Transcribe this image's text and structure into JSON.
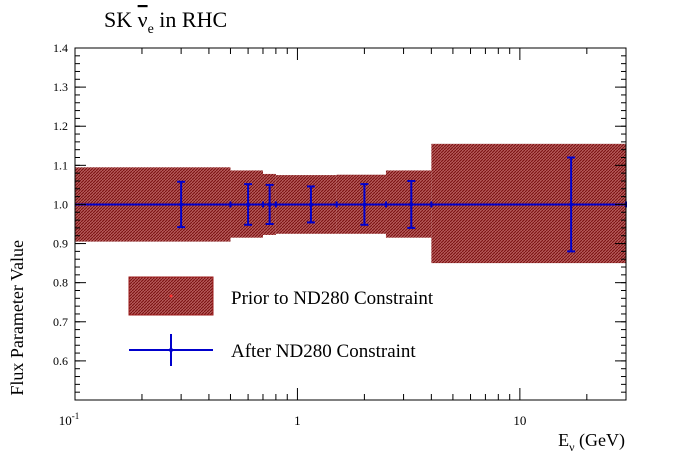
{
  "chart_data": {
    "type": "binned-errors",
    "title_main": "SK ",
    "title_nu": "ν",
    "title_sub": "e",
    "title_tail": " in RHC",
    "ylabel": "Flux Parameter Value",
    "xlabel_main": "E",
    "xlabel_sub": "ν",
    "xlabel_tail": " (GeV)",
    "x_scale": "log",
    "xlim": [
      0.1,
      30
    ],
    "ylim": [
      0.5,
      1.4
    ],
    "x_tick_labels": [
      {
        "value": 0.1,
        "base": "10",
        "exp": "-1"
      },
      {
        "value": 1,
        "base": "1",
        "exp": ""
      },
      {
        "value": 10,
        "base": "10",
        "exp": ""
      }
    ],
    "y_ticks": [
      0.6,
      0.7,
      0.8,
      0.9,
      1.0,
      1.1,
      1.2,
      1.3,
      1.4
    ],
    "y_tick_labels": [
      "0.6",
      "0.7",
      "0.8",
      "0.9",
      "1.0",
      "1.1",
      "1.2",
      "1.3",
      "1.4"
    ],
    "prior_color": "#9e1a1a",
    "after_color": "#0000cc",
    "prior_bins": [
      {
        "xlo": 0.1,
        "xhi": 0.5,
        "ylo": 0.905,
        "yhi": 1.095
      },
      {
        "xlo": 0.5,
        "xhi": 0.7,
        "ylo": 0.915,
        "yhi": 1.087
      },
      {
        "xlo": 0.7,
        "xhi": 0.8,
        "ylo": 0.922,
        "yhi": 1.078
      },
      {
        "xlo": 0.8,
        "xhi": 1.5,
        "ylo": 0.925,
        "yhi": 1.075
      },
      {
        "xlo": 1.5,
        "xhi": 2.5,
        "ylo": 0.925,
        "yhi": 1.076
      },
      {
        "xlo": 2.5,
        "xhi": 4.0,
        "ylo": 0.915,
        "yhi": 1.087
      },
      {
        "xlo": 4.0,
        "xhi": 30,
        "ylo": 0.85,
        "yhi": 1.155
      }
    ],
    "after_points": [
      {
        "xlo": 0.1,
        "xhi": 0.5,
        "x": 0.3,
        "y": 1.0,
        "err": 0.058
      },
      {
        "xlo": 0.5,
        "xhi": 0.7,
        "x": 0.6,
        "y": 1.0,
        "err": 0.052
      },
      {
        "xlo": 0.7,
        "xhi": 0.8,
        "x": 0.75,
        "y": 1.0,
        "err": 0.05
      },
      {
        "xlo": 0.8,
        "xhi": 1.5,
        "x": 1.15,
        "y": 1.0,
        "err": 0.046
      },
      {
        "xlo": 1.5,
        "xhi": 2.5,
        "x": 2.0,
        "y": 1.0,
        "err": 0.052
      },
      {
        "xlo": 2.5,
        "xhi": 4.0,
        "x": 3.25,
        "y": 1.0,
        "err": 0.06
      },
      {
        "xlo": 4.0,
        "xhi": 30,
        "x": 17,
        "y": 1.0,
        "err": 0.12
      }
    ],
    "legend": [
      {
        "label": "Prior to ND280 Constraint",
        "kind": "box"
      },
      {
        "label": "After ND280 Constraint",
        "kind": "errbar"
      }
    ]
  }
}
